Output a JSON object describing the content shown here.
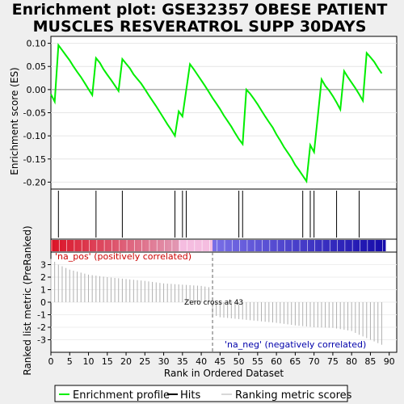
{
  "chart_data": [
    {
      "type": "line",
      "panel": "enrichment-profile",
      "title_lines": [
        "Enrichment plot: GSE32357 OBESE PATIENT",
        "MUSCLES RESVERATROL SUPP 30DAYS"
      ],
      "ylabel": "Enrichment score (ES)",
      "ylim": [
        -0.215,
        0.115
      ],
      "yticks": [
        -0.2,
        -0.15,
        -0.1,
        -0.05,
        0.0,
        0.05,
        0.1
      ],
      "ytick_labels": [
        "-0.20",
        "-0.15",
        "-0.10",
        "-0.05",
        "0.00",
        "0.05",
        "0.10"
      ],
      "series": [
        {
          "color": "#00ee00",
          "x": [
            0,
            1,
            2,
            3,
            4,
            5,
            6,
            7,
            8,
            9,
            10,
            11,
            12,
            13,
            14,
            15,
            16,
            17,
            18,
            19,
            20,
            21,
            22,
            23,
            24,
            25,
            26,
            27,
            28,
            29,
            30,
            31,
            32,
            33,
            34,
            35,
            36,
            37,
            38,
            39,
            40,
            41,
            42,
            43,
            44,
            45,
            46,
            47,
            48,
            49,
            50,
            51,
            52,
            53,
            54,
            55,
            56,
            57,
            58,
            59,
            60,
            61,
            62,
            63,
            64,
            65,
            66,
            67,
            68,
            69,
            70,
            71,
            72,
            73,
            74,
            75,
            76,
            77,
            78,
            79,
            80,
            81,
            82,
            83,
            84,
            85,
            86,
            87,
            88
          ],
          "values": [
            -0.01,
            -0.026,
            0.096,
            0.085,
            0.074,
            0.063,
            0.05,
            0.038,
            0.027,
            0.014,
            0.001,
            -0.012,
            0.068,
            0.058,
            0.044,
            0.032,
            0.021,
            0.009,
            -0.003,
            0.066,
            0.056,
            0.046,
            0.033,
            0.023,
            0.013,
            0.001,
            -0.012,
            -0.024,
            -0.036,
            -0.049,
            -0.062,
            -0.075,
            -0.087,
            -0.1,
            -0.047,
            -0.058,
            -0.001,
            0.055,
            0.044,
            0.032,
            0.02,
            0.008,
            -0.005,
            -0.018,
            -0.03,
            -0.042,
            -0.056,
            -0.068,
            -0.08,
            -0.094,
            -0.107,
            -0.118,
            0.0,
            -0.009,
            -0.02,
            -0.032,
            -0.045,
            -0.058,
            -0.07,
            -0.082,
            -0.097,
            -0.11,
            -0.124,
            -0.136,
            -0.148,
            -0.163,
            -0.174,
            -0.186,
            -0.198,
            -0.12,
            -0.135,
            -0.058,
            0.022,
            0.008,
            -0.002,
            -0.014,
            -0.028,
            -0.043,
            0.04,
            0.027,
            0.015,
            0.003,
            -0.01,
            -0.024,
            0.079,
            0.07,
            0.06,
            0.047,
            0.035
          ]
        }
      ]
    },
    {
      "type": "scatter",
      "panel": "hits",
      "hits": [
        2,
        12,
        19,
        33,
        35,
        36,
        50,
        51,
        67,
        69,
        70,
        76,
        82
      ]
    },
    {
      "type": "area",
      "panel": "ranking-metric",
      "xlabel": "Rank in Ordered Dataset",
      "ylabel": "Ranked list metric (PreRanked)",
      "ylim": [
        -4,
        4
      ],
      "yticks": [
        -3,
        -2,
        -1,
        0,
        1,
        2,
        3
      ],
      "xlim": [
        0,
        92
      ],
      "xticks": [
        0,
        5,
        10,
        15,
        20,
        25,
        30,
        35,
        40,
        45,
        50,
        55,
        60,
        65,
        70,
        75,
        80,
        85,
        90
      ],
      "metric_points": [
        [
          0,
          3.45
        ],
        [
          2,
          3.0
        ],
        [
          5,
          2.6
        ],
        [
          10,
          2.2
        ],
        [
          15,
          2.0
        ],
        [
          20,
          1.85
        ],
        [
          25,
          1.7
        ],
        [
          30,
          1.5
        ],
        [
          35,
          1.4
        ],
        [
          40,
          1.3
        ],
        [
          42,
          1.2
        ],
        [
          43,
          -1.0
        ],
        [
          45,
          -1.2
        ],
        [
          50,
          -1.35
        ],
        [
          55,
          -1.5
        ],
        [
          60,
          -1.65
        ],
        [
          65,
          -1.85
        ],
        [
          70,
          -2.0
        ],
        [
          75,
          -2.05
        ],
        [
          80,
          -2.3
        ],
        [
          82,
          -2.6
        ],
        [
          85,
          -3.0
        ],
        [
          88,
          -3.4
        ]
      ],
      "zero_cross": 43,
      "zero_cross_label": "Zero cross at 43",
      "pos_label": "'na_pos' (positively correlated)",
      "neg_label": "'na_neg' (negatively correlated)",
      "n_genes": 89
    }
  ],
  "legend": {
    "enrichment": "Enrichment profile",
    "hits": "Hits",
    "ranking": "Ranking metric scores"
  },
  "colors": {
    "profile": "#00ee00",
    "pos_bar": "#cc0000",
    "neg_bar": "#0000aa",
    "metric": "#b0b0b0"
  }
}
